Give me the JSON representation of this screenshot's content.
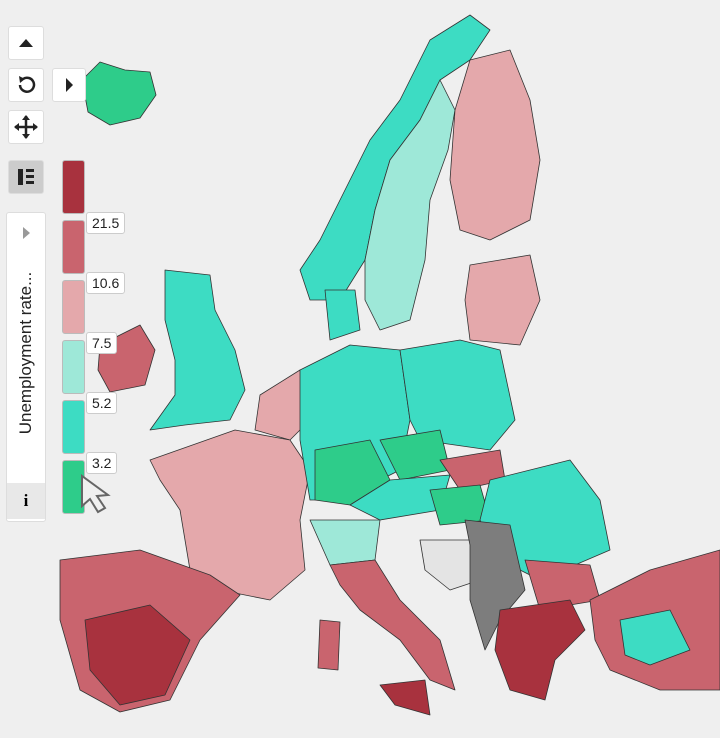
{
  "legend": {
    "title": "Unemployment rate...",
    "breaks": [
      21.5,
      10.6,
      7.5,
      5.2,
      3.2
    ],
    "colors": [
      "#a8323e",
      "#c9646e",
      "#e4a8ab",
      "#9ee8d8",
      "#3ddcc3",
      "#2ecc8a"
    ],
    "no_data_color": "#7d7d7d"
  },
  "info_button": "i"
}
